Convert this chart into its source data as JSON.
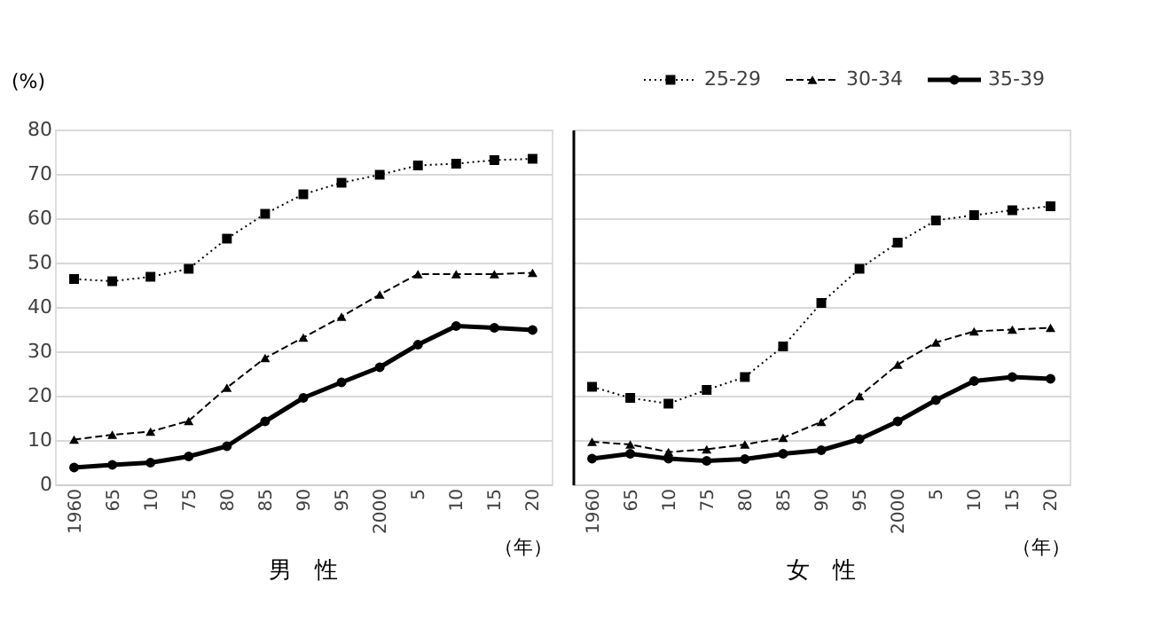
{
  "chart_data": [
    {
      "type": "line",
      "title": "男　性",
      "xlabel": "（年）",
      "ylabel": "(%)",
      "categories": [
        "1960",
        "65",
        "10",
        "75",
        "80",
        "85",
        "90",
        "95",
        "2000",
        "5",
        "10",
        "15",
        "20"
      ],
      "ylim": [
        0,
        80
      ],
      "yticks": [
        0,
        10,
        20,
        30,
        40,
        50,
        60,
        70,
        80
      ],
      "grid": "y",
      "legend": "top right",
      "series": [
        {
          "name": "25-29",
          "color": "#000000",
          "line_style": "dotted",
          "marker": "square",
          "values": [
            46.3,
            45.8,
            46.8,
            48.6,
            55.4,
            61.0,
            65.4,
            68.0,
            69.8,
            71.9,
            72.3,
            73.1,
            73.4
          ]
        },
        {
          "name": "30-34",
          "color": "#000000",
          "line_style": "dashed",
          "marker": "triangle",
          "values": [
            10.1,
            11.2,
            11.9,
            14.3,
            21.8,
            28.5,
            33.1,
            37.8,
            42.8,
            47.4,
            47.4,
            47.4,
            47.7
          ]
        },
        {
          "name": "35-39",
          "color": "#000000",
          "line_style": "solid",
          "marker": "circle",
          "values": [
            3.8,
            4.4,
            4.9,
            6.3,
            8.6,
            14.2,
            19.5,
            23.0,
            26.4,
            31.5,
            35.7,
            35.3,
            34.8
          ]
        }
      ]
    },
    {
      "type": "line",
      "title": "女　性",
      "xlabel": "（年）",
      "categories": [
        "1960",
        "65",
        "10",
        "75",
        "80",
        "85",
        "90",
        "95",
        "2000",
        "5",
        "10",
        "15",
        "20"
      ],
      "ylim": [
        0,
        80
      ],
      "yticks": [
        0,
        10,
        20,
        30,
        40,
        50,
        60,
        70,
        80
      ],
      "grid": "y",
      "tick_labels": "x",
      "series": [
        {
          "color": "#000000",
          "line_style": "dotted",
          "marker": "square",
          "values": [
            22.0,
            19.5,
            18.2,
            21.3,
            24.2,
            31.1,
            40.9,
            48.6,
            54.5,
            59.5,
            60.7,
            61.8,
            62.7
          ]
        },
        {
          "color": "#000000",
          "line_style": "dashed",
          "marker": "triangle",
          "values": [
            9.6,
            9.0,
            7.3,
            7.9,
            9.0,
            10.5,
            14.1,
            19.9,
            27.0,
            32.0,
            34.5,
            34.9,
            35.3
          ]
        },
        {
          "color": "#000000",
          "line_style": "solid",
          "marker": "circle",
          "values": [
            5.8,
            6.9,
            5.8,
            5.3,
            5.7,
            6.9,
            7.7,
            10.2,
            14.2,
            19.0,
            23.3,
            24.2,
            23.8
          ]
        }
      ]
    }
  ]
}
